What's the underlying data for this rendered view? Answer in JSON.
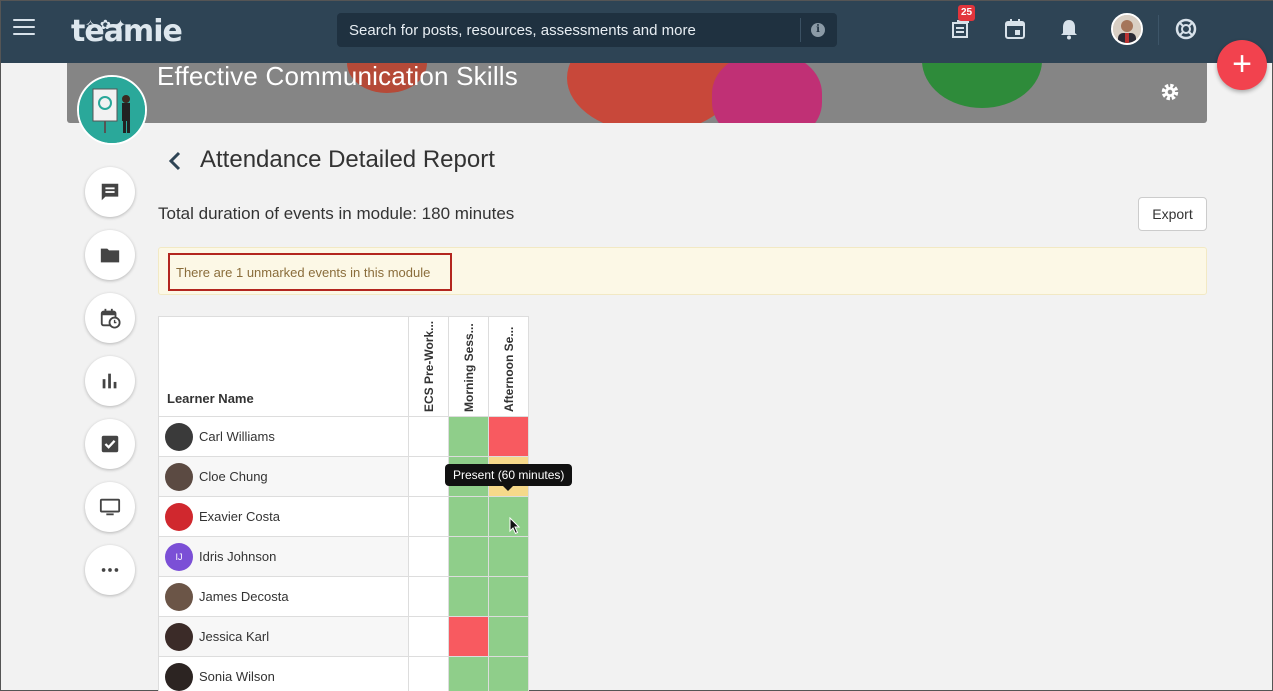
{
  "header": {
    "logo_text": "teamie",
    "search_placeholder": "Search for posts, resources, assessments and more",
    "notification_count": "25",
    "icons": [
      "hamburger-icon",
      "posts-icon",
      "calendar-icon",
      "bell-icon",
      "avatar",
      "support-icon"
    ],
    "fab_label": "+"
  },
  "banner": {
    "course_title": "Effective Communication Skills"
  },
  "sidebar": {
    "items": [
      "chat-icon",
      "folder-icon",
      "calendar-clock-icon",
      "bar-chart-icon",
      "checkbox-icon",
      "monitor-icon",
      "more-icon"
    ]
  },
  "main": {
    "page_title": "Attendance Detailed Report",
    "duration_text": "Total duration of events in module: 180 minutes",
    "export_label": "Export",
    "alert_text": "There are 1 unmarked events in this module",
    "table": {
      "name_header": "Learner Name",
      "events": [
        "ECS Pre-Work...",
        "Morning Sess...",
        "Afternoon Se..."
      ],
      "rows": [
        {
          "name": "Carl Williams",
          "avatar_color": "#3a3a3a",
          "status": [
            "none",
            "present",
            "absent"
          ]
        },
        {
          "name": "Cloe Chung",
          "avatar_color": "#5b4a42",
          "status": [
            "none",
            "present",
            "late"
          ]
        },
        {
          "name": "Exavier Costa",
          "avatar_color": "#d0282e",
          "status": [
            "none",
            "present",
            "present"
          ]
        },
        {
          "name": "Idris Johnson",
          "avatar_color": "#7b4fd6",
          "avatar_initials": "IJ",
          "status": [
            "none",
            "present",
            "present"
          ]
        },
        {
          "name": "James Decosta",
          "avatar_color": "#6b5547",
          "status": [
            "none",
            "present",
            "present"
          ]
        },
        {
          "name": "Jessica Karl",
          "avatar_color": "#3b2b28",
          "status": [
            "none",
            "absent",
            "present"
          ]
        },
        {
          "name": "Sonia Wilson",
          "avatar_color": "#2c2422",
          "status": [
            "none",
            "present",
            "present"
          ]
        }
      ]
    },
    "tooltip_text": "Present (60 minutes)"
  },
  "colors": {
    "topbar": "#2e4455",
    "present": "#8fce8a",
    "absent": "#f85a60",
    "late": "#f6d98a",
    "fab": "#f2424e",
    "alert_border": "#b3261e"
  }
}
